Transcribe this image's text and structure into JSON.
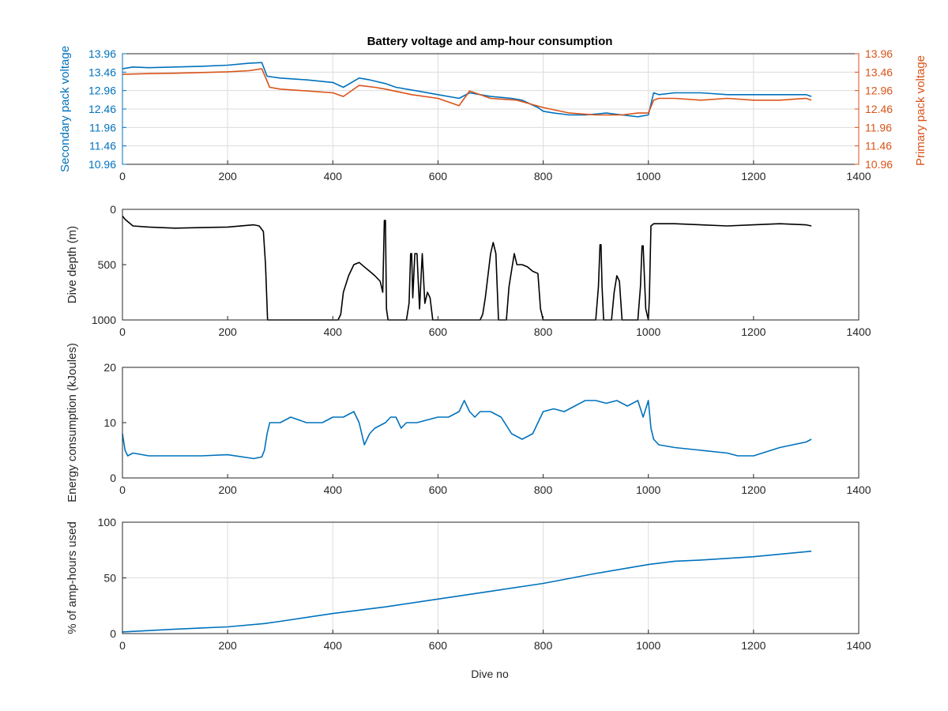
{
  "figure": {
    "title": "Battery voltage and amp-hour consumption",
    "xlabel_bottom": "Dive no",
    "colors": {
      "blue": "#0072BD",
      "orange": "#D95319",
      "black": "#000000",
      "grid": "#dcdcdc",
      "axis": "#262626"
    }
  },
  "chart_data": [
    {
      "type": "line",
      "title": "Battery voltage and amp-hour consumption",
      "xlabel": "",
      "ylabel": "Secondary pack voltage",
      "ylabel_right": "Primary pack voltage",
      "xlim": [
        0,
        1400
      ],
      "ylim": [
        10.96,
        13.96
      ],
      "xticks": [
        0,
        200,
        400,
        600,
        800,
        1000,
        1200,
        1400
      ],
      "yticks": [
        10.96,
        11.46,
        11.96,
        12.46,
        12.96,
        13.46,
        13.96
      ],
      "ytick_labels": [
        "10.96",
        "11.46",
        "11.96",
        "12.46",
        "12.96",
        "13.46",
        "13.96"
      ],
      "grid": true,
      "series": [
        {
          "color": "#0072BD",
          "axis": "left",
          "x": [
            0,
            20,
            50,
            100,
            150,
            200,
            240,
            265,
            275,
            300,
            350,
            400,
            420,
            450,
            470,
            500,
            520,
            560,
            600,
            640,
            660,
            700,
            740,
            760,
            790,
            800,
            820,
            850,
            880,
            920,
            950,
            980,
            1000,
            1010,
            1020,
            1050,
            1100,
            1150,
            1200,
            1250,
            1300,
            1310
          ],
          "y": [
            13.55,
            13.6,
            13.58,
            13.6,
            13.62,
            13.65,
            13.7,
            13.72,
            13.35,
            13.3,
            13.25,
            13.18,
            13.05,
            13.3,
            13.25,
            13.15,
            13.05,
            12.95,
            12.85,
            12.75,
            12.9,
            12.8,
            12.75,
            12.7,
            12.5,
            12.4,
            12.35,
            12.3,
            12.3,
            12.35,
            12.3,
            12.25,
            12.3,
            12.9,
            12.85,
            12.9,
            12.9,
            12.85,
            12.85,
            12.85,
            12.85,
            12.8
          ]
        },
        {
          "color": "#D95319",
          "axis": "right",
          "x": [
            0,
            50,
            100,
            150,
            200,
            240,
            265,
            280,
            300,
            350,
            400,
            420,
            450,
            480,
            500,
            550,
            600,
            640,
            660,
            700,
            750,
            800,
            850,
            900,
            950,
            980,
            1000,
            1010,
            1020,
            1050,
            1100,
            1150,
            1200,
            1250,
            1300,
            1310
          ],
          "y": [
            13.4,
            13.42,
            13.43,
            13.45,
            13.47,
            13.5,
            13.55,
            13.05,
            13.0,
            12.95,
            12.9,
            12.8,
            13.1,
            13.05,
            13.0,
            12.85,
            12.75,
            12.55,
            12.95,
            12.75,
            12.7,
            12.5,
            12.35,
            12.3,
            12.3,
            12.35,
            12.35,
            12.7,
            12.75,
            12.75,
            12.7,
            12.75,
            12.7,
            12.7,
            12.75,
            12.7
          ]
        }
      ]
    },
    {
      "type": "line",
      "title": "",
      "xlabel": "",
      "ylabel": "Dive depth (m)",
      "xlim": [
        0,
        1400
      ],
      "ylim": [
        0,
        1000
      ],
      "reversed_y": true,
      "xticks": [
        0,
        200,
        400,
        600,
        800,
        1000,
        1200,
        1400
      ],
      "yticks": [
        0,
        500,
        1000
      ],
      "ytick_labels": [
        "0",
        "500",
        "1000"
      ],
      "grid": false,
      "series": [
        {
          "color": "#000000",
          "x": [
            0,
            5,
            20,
            50,
            100,
            150,
            200,
            250,
            260,
            268,
            272,
            276,
            280,
            300,
            350,
            400,
            410,
            415,
            420,
            430,
            440,
            450,
            460,
            470,
            480,
            490,
            495,
            498,
            500,
            502,
            505,
            510,
            540,
            545,
            548,
            550,
            552,
            556,
            560,
            565,
            568,
            570,
            575,
            580,
            585,
            590,
            600,
            620,
            640,
            680,
            685,
            690,
            700,
            705,
            710,
            715,
            720,
            730,
            735,
            740,
            745,
            750,
            760,
            770,
            780,
            790,
            795,
            800,
            850,
            900,
            905,
            908,
            910,
            912,
            915,
            920,
            930,
            935,
            940,
            945,
            950,
            960,
            980,
            985,
            988,
            990,
            995,
            1000,
            1002,
            1005,
            1010,
            1050,
            1100,
            1150,
            1200,
            1250,
            1300,
            1310
          ],
          "y": [
            60,
            90,
            150,
            160,
            170,
            165,
            160,
            140,
            150,
            200,
            500,
            1000,
            1000,
            1000,
            1000,
            1000,
            1000,
            950,
            750,
            600,
            500,
            480,
            520,
            560,
            600,
            650,
            750,
            100,
            100,
            900,
            1000,
            1000,
            1000,
            850,
            400,
            400,
            800,
            400,
            400,
            900,
            600,
            400,
            850,
            750,
            800,
            1000,
            1000,
            1000,
            1000,
            1000,
            950,
            800,
            400,
            300,
            400,
            1000,
            1000,
            1000,
            700,
            550,
            400,
            500,
            500,
            520,
            560,
            580,
            900,
            1000,
            1000,
            1000,
            700,
            320,
            320,
            700,
            1000,
            1000,
            1000,
            750,
            600,
            650,
            1000,
            1000,
            1000,
            700,
            330,
            330,
            900,
            1000,
            800,
            150,
            130,
            130,
            140,
            150,
            140,
            130,
            140,
            150
          ]
        }
      ]
    },
    {
      "type": "line",
      "title": "",
      "xlabel": "",
      "ylabel": "Energy consumption (kJoules)",
      "xlim": [
        0,
        1400
      ],
      "ylim": [
        0,
        20
      ],
      "xticks": [
        0,
        200,
        400,
        600,
        800,
        1000,
        1200,
        1400
      ],
      "yticks": [
        0,
        10,
        20
      ],
      "ytick_labels": [
        "0",
        "10",
        "20"
      ],
      "grid": false,
      "series": [
        {
          "color": "#0072BD",
          "x": [
            0,
            5,
            10,
            20,
            50,
            100,
            150,
            200,
            250,
            265,
            270,
            275,
            280,
            300,
            320,
            350,
            380,
            400,
            420,
            440,
            450,
            460,
            470,
            480,
            500,
            510,
            520,
            530,
            540,
            560,
            580,
            600,
            620,
            640,
            650,
            660,
            670,
            680,
            700,
            720,
            740,
            760,
            780,
            800,
            820,
            840,
            860,
            880,
            900,
            920,
            940,
            960,
            980,
            990,
            1000,
            1005,
            1010,
            1020,
            1050,
            1100,
            1150,
            1170,
            1200,
            1250,
            1300,
            1310
          ],
          "y": [
            8,
            5,
            4,
            4.5,
            4,
            4,
            4,
            4.2,
            3.5,
            3.8,
            5,
            8,
            10,
            10,
            11,
            10,
            10,
            11,
            11,
            12,
            10,
            6,
            8,
            9,
            10,
            11,
            11,
            9,
            10,
            10,
            10.5,
            11,
            11,
            12,
            14,
            12,
            11,
            12,
            12,
            11,
            8,
            7,
            8,
            12,
            12.5,
            12,
            13,
            14,
            14,
            13.5,
            14,
            13,
            14,
            11,
            14,
            9,
            7,
            6,
            5.5,
            5,
            4.5,
            4,
            4,
            5.5,
            6.5,
            7
          ]
        }
      ]
    },
    {
      "type": "line",
      "title": "",
      "xlabel": "Dive no",
      "ylabel": "% of amp-hours used",
      "xlim": [
        0,
        1400
      ],
      "ylim": [
        0,
        100
      ],
      "xticks": [
        0,
        200,
        400,
        600,
        800,
        1000,
        1200,
        1400
      ],
      "yticks": [
        0,
        50,
        100
      ],
      "ytick_labels": [
        "0",
        "50",
        "100"
      ],
      "grid": true,
      "series": [
        {
          "color": "#0072BD",
          "x": [
            0,
            100,
            200,
            270,
            300,
            400,
            500,
            600,
            700,
            800,
            900,
            1000,
            1050,
            1100,
            1200,
            1310
          ],
          "y": [
            1.5,
            4,
            6,
            9,
            11,
            18,
            24,
            31,
            38,
            45,
            54,
            62,
            65,
            66,
            69,
            74
          ]
        }
      ]
    }
  ]
}
